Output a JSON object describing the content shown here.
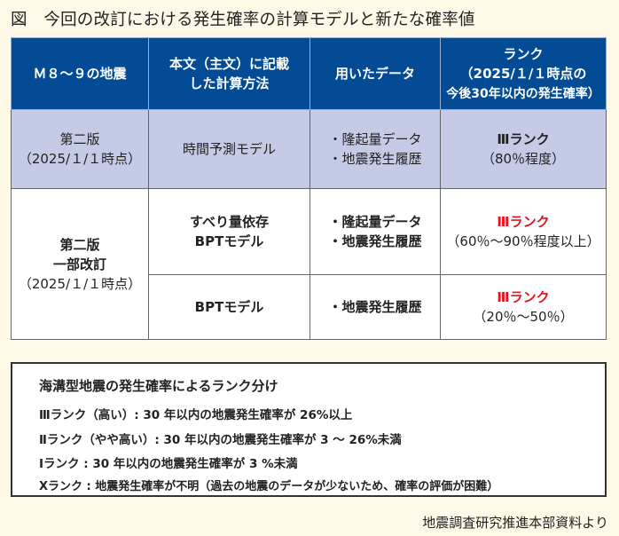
{
  "title": "図　今回の改訂における発生確率の計算モデルと新たな確率値",
  "table": {
    "headers": [
      "Ｍ８～９の地震",
      [
        "本文（主文）に記載",
        "した計算方法"
      ],
      "用いたデータ",
      [
        "ランク",
        "（2025/１/１時点の",
        "今後30年以内の発生確率）"
      ]
    ],
    "rows": [
      {
        "version": [
          "第二版",
          "（2025/１/１時点）"
        ],
        "method": "時間予測モデル",
        "data": [
          "・隆起量データ",
          "・地震発生履歴"
        ],
        "rank": "Ⅲランク",
        "prob": "（80％程度）"
      },
      {
        "version": [
          "第二版",
          "一部改訂",
          "（2025/１/１時点）"
        ],
        "method": [
          "すべり量依存",
          "BPTモデル"
        ],
        "data": [
          "・隆起量データ",
          "・地震発生履歴"
        ],
        "rank": "Ⅲランク",
        "prob": "（60％～90％程度以上）"
      },
      {
        "method": "BPTモデル",
        "data": [
          "・地震発生履歴"
        ],
        "rank": "Ⅲランク",
        "prob": "（20％～50％）"
      }
    ]
  },
  "legend": {
    "heading": "海溝型地震の発生確率によるランク分け",
    "items": [
      "Ⅲランク（高い）: 30 年以内の地震発生確率が 26%以上",
      "Ⅱランク（やや高い）: 30 年以内の地震発生確率が 3 ～ 26%未満",
      "Ⅰランク : 30 年以内の地震発生確率が 3 %未満",
      "Ⅹランク : 地震発生確率が不明（過去の地震のデータが少ないため、確率の評価が困難）"
    ]
  },
  "credit": "地震調査研究推進本部資料より",
  "colors": {
    "header": "#034b95",
    "row_highlight": "#c5cae6",
    "rank_red": "#e0141e",
    "background": "#fdf9e6"
  }
}
